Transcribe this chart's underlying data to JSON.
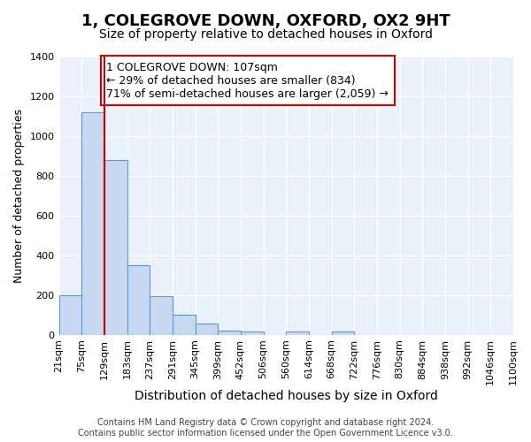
{
  "title": "1, COLEGROVE DOWN, OXFORD, OX2 9HT",
  "subtitle": "Size of property relative to detached houses in Oxford",
  "xlabel": "Distribution of detached houses by size in Oxford",
  "ylabel": "Number of detached properties",
  "bin_labels": [
    "21sqm",
    "75sqm",
    "129sqm",
    "183sqm",
    "237sqm",
    "291sqm",
    "345sqm",
    "399sqm",
    "452sqm",
    "506sqm",
    "560sqm",
    "614sqm",
    "668sqm",
    "722sqm",
    "776sqm",
    "830sqm",
    "884sqm",
    "938sqm",
    "992sqm",
    "1046sqm",
    "1100sqm"
  ],
  "bar_heights": [
    200,
    1120,
    880,
    350,
    195,
    100,
    55,
    20,
    15,
    0,
    15,
    0,
    15,
    0,
    0,
    0,
    0,
    0,
    0,
    0
  ],
  "bar_color": "#c6d9f0",
  "bar_edge_color": "#5b9bd5",
  "vline_x": 2.0,
  "vline_color": "#cc0000",
  "annotation_text": "1 COLEGROVE DOWN: 107sqm\n← 29% of detached houses are smaller (834)\n71% of semi-detached houses are larger (2,059) →",
  "annotation_box_color": "#ffffff",
  "annotation_box_edge_color": "#cc0000",
  "ylim": [
    0,
    1400
  ],
  "yticks": [
    0,
    200,
    400,
    600,
    800,
    1000,
    1200,
    1400
  ],
  "background_color": "#eaf1fb",
  "footer_text": "Contains HM Land Registry data © Crown copyright and database right 2024.\nContains public sector information licensed under the Open Government Licence v3.0.",
  "title_fontsize": 13,
  "subtitle_fontsize": 10,
  "xlabel_fontsize": 10,
  "ylabel_fontsize": 9,
  "tick_fontsize": 8,
  "annotation_fontsize": 9,
  "footer_fontsize": 7
}
